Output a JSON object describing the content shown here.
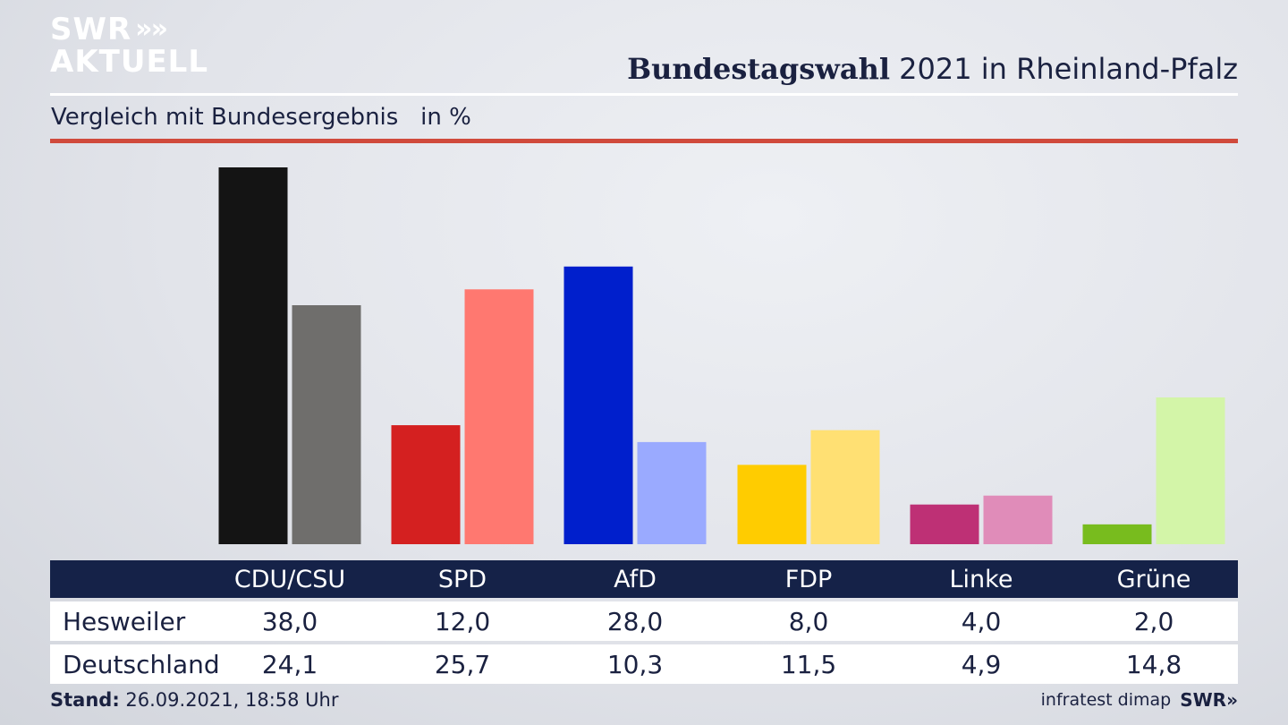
{
  "branding": {
    "logo_line1": "SWR",
    "logo_chevrons": "»",
    "logo_line2": "AKTUELL",
    "footer_source": "infratest dimap",
    "footer_logo": "SWR»"
  },
  "header": {
    "title_bold": "Bundestagswahl",
    "title_rest": " 2021 in Rheinland-Pfalz",
    "subtitle": "Vergleich mit Bundesergebnis   in %"
  },
  "footer": {
    "stand_label": "Stand:",
    "stand_value": " 26.09.2021, 18:58 Uhr"
  },
  "chart_data": {
    "type": "bar",
    "title": "Bundestagswahl 2021 in Rheinland-Pfalz",
    "subtitle": "Vergleich mit Bundesergebnis in %",
    "categories": [
      "CDU/CSU",
      "SPD",
      "AfD",
      "FDP",
      "Linke",
      "Grüne"
    ],
    "series": [
      {
        "name": "Hesweiler",
        "values": [
          38.0,
          12.0,
          28.0,
          8.0,
          4.0,
          2.0
        ],
        "labels": [
          "38,0",
          "12,0",
          "28,0",
          "8,0",
          "4,0",
          "2,0"
        ],
        "colors": [
          "#141414",
          "#d42020",
          "#001fcc",
          "#ffcc00",
          "#be3075",
          "#78bc1e"
        ]
      },
      {
        "name": "Deutschland",
        "values": [
          24.1,
          25.7,
          10.3,
          11.5,
          4.9,
          14.8
        ],
        "labels": [
          "24,1",
          "25,7",
          "10,3",
          "11,5",
          "4,9",
          "14,8"
        ],
        "colors": [
          "#6f6e6c",
          "#ff7870",
          "#9aaaff",
          "#ffe073",
          "#e08cb9",
          "#d3f5a8"
        ]
      }
    ],
    "ylim": [
      0,
      38.0
    ],
    "grid": false
  }
}
